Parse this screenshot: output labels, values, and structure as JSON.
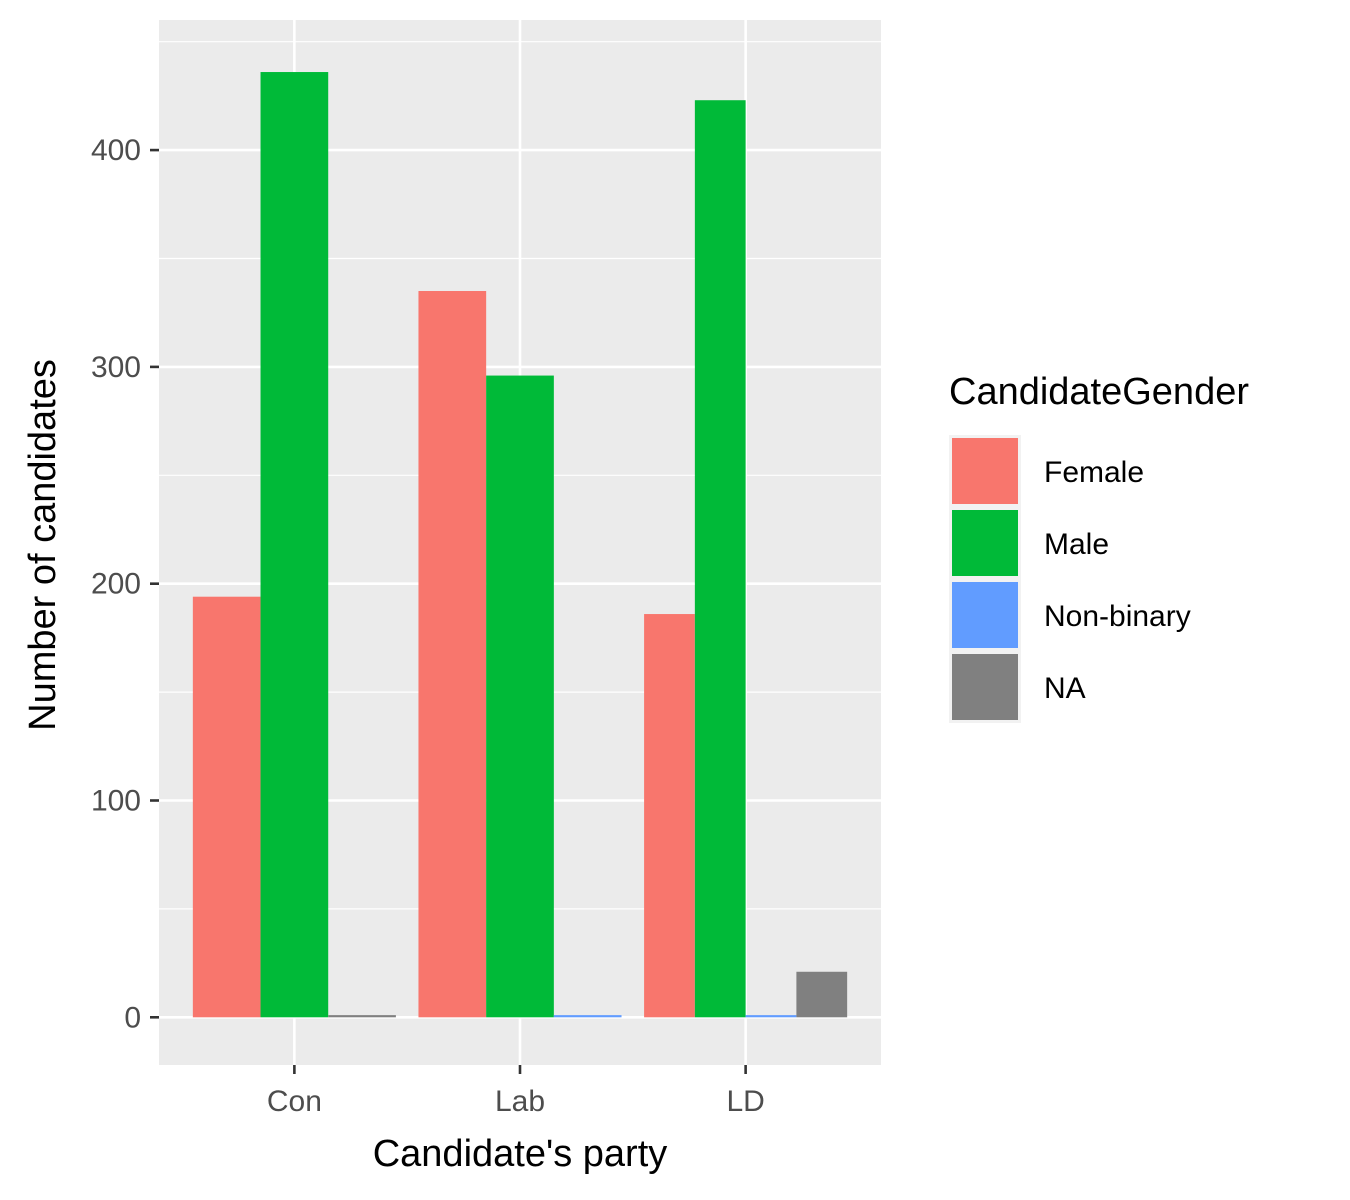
{
  "chart_data": {
    "type": "bar",
    "title": "",
    "xlabel": "Candidate's party",
    "ylabel": "Number of candidates",
    "categories": [
      "Con",
      "Lab",
      "LD"
    ],
    "ylim": [
      -22,
      460
    ],
    "yticks": [
      0,
      100,
      200,
      300,
      400
    ],
    "grid": true,
    "legend": {
      "title": "CandidateGender",
      "position": "right"
    },
    "series": [
      {
        "name": "Female",
        "color": "#F8766D",
        "values": [
          194,
          335,
          186
        ]
      },
      {
        "name": "Male",
        "color": "#00BA38",
        "values": [
          436,
          296,
          423
        ]
      },
      {
        "name": "Non-binary",
        "color": "#619CFF",
        "values": [
          null,
          1,
          1
        ]
      },
      {
        "name": "NA",
        "color": "#808080",
        "values": [
          1,
          null,
          21
        ]
      }
    ]
  }
}
